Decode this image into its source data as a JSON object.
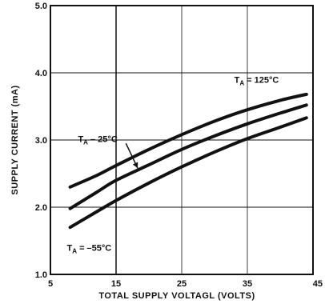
{
  "chart_data": {
    "type": "line",
    "title": "",
    "xlabel": "TOTAL SUPPLY VOLTAGL (VOLTS)",
    "ylabel": "SUPPLY CURRENT (mA)",
    "xlim": [
      5,
      45
    ],
    "ylim": [
      1.0,
      5.0
    ],
    "x_ticks": [
      "5",
      "15",
      "25",
      "35",
      "45"
    ],
    "y_ticks": [
      "1.0",
      "2.0",
      "3.0",
      "4.0",
      "5.0"
    ],
    "grid": true,
    "series": [
      {
        "name": "TA = 125°C",
        "x": [
          8,
          12,
          15,
          20,
          25,
          30,
          35,
          40,
          44
        ],
        "y": [
          2.3,
          2.47,
          2.62,
          2.86,
          3.08,
          3.28,
          3.45,
          3.59,
          3.68
        ]
      },
      {
        "name": "TA = 25°C",
        "x": [
          8,
          12,
          15,
          20,
          25,
          30,
          35,
          40,
          44
        ],
        "y": [
          1.98,
          2.22,
          2.4,
          2.63,
          2.86,
          3.06,
          3.24,
          3.4,
          3.52
        ]
      },
      {
        "name": "TA = -55°C",
        "x": [
          8,
          12,
          15,
          20,
          25,
          30,
          35,
          40,
          44
        ],
        "y": [
          1.7,
          1.93,
          2.1,
          2.36,
          2.6,
          2.82,
          3.02,
          3.19,
          3.33
        ]
      }
    ],
    "annotations": [
      {
        "base": "T",
        "sub": "A",
        "rest": " = 125°C"
      },
      {
        "base": "T",
        "sub": "A",
        "rest": " – 25°C"
      },
      {
        "base": "T",
        "sub": "A",
        "rest": " = –55°C"
      }
    ]
  }
}
